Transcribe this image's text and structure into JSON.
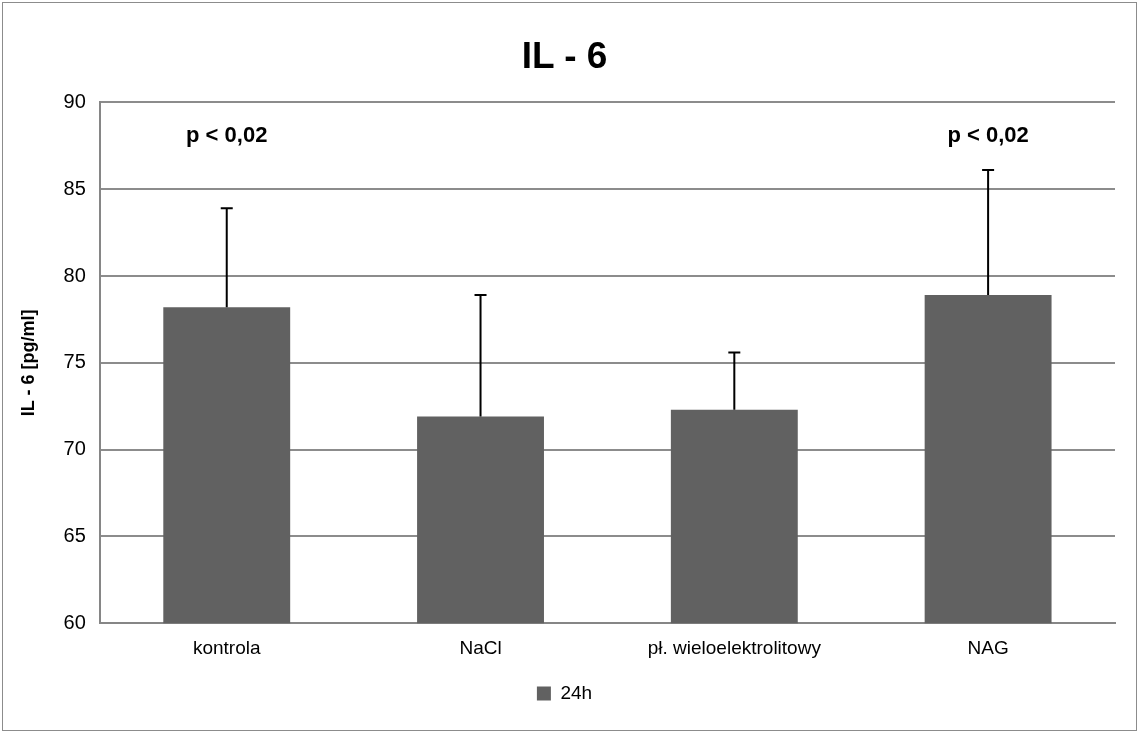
{
  "chart_data": {
    "type": "bar",
    "title": "IL - 6",
    "ylabel": "IL - 6 [pg/ml]",
    "categories": [
      "kontrola",
      "NaCl",
      "pł. wieloelektrolitowy",
      "NAG"
    ],
    "series": [
      {
        "name": "24h",
        "color": "#616161",
        "values": [
          78.2,
          71.9,
          72.3,
          78.9
        ],
        "errors": [
          [
            78.2,
            83.9
          ],
          [
            71.9,
            78.9
          ],
          [
            72.3,
            75.6
          ],
          [
            78.9,
            86.1
          ]
        ]
      }
    ],
    "ylim": [
      60,
      90
    ],
    "yticks": [
      60,
      65,
      70,
      75,
      80,
      85,
      90
    ],
    "grid": "y",
    "legend": "bottom",
    "annotations": [
      "p < 0,02",
      "p < 0,02"
    ]
  }
}
